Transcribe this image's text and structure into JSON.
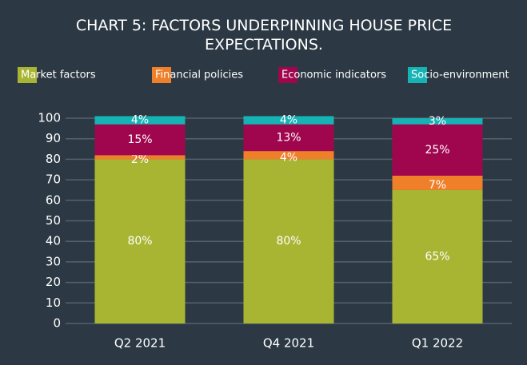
{
  "chart_data": {
    "type": "stacked_bar",
    "title": "CHART 5: FACTORS UNDERPINNING HOUSE PRICE EXPECTATIONS.",
    "categories": [
      "Q2 2021",
      "Q4 2021",
      "Q1 2022"
    ],
    "series": [
      {
        "name": "Market factors",
        "color": "#a8b533",
        "values": [
          80,
          80,
          65
        ],
        "value_labels": [
          "80%",
          "80%",
          "65%"
        ]
      },
      {
        "name": "Financial policies",
        "color": "#f07f2a",
        "values": [
          2,
          4,
          7
        ],
        "value_labels": [
          "2%",
          "4%",
          "7%"
        ]
      },
      {
        "name": "Economic indicators",
        "color": "#a0064e",
        "values": [
          15,
          13,
          25
        ],
        "value_labels": [
          "15%",
          "13%",
          "25%"
        ]
      },
      {
        "name": "Socio-environment",
        "color": "#16b3b5",
        "values": [
          4,
          4,
          3
        ],
        "value_labels": [
          "4%",
          "4%",
          "3%"
        ]
      }
    ],
    "ylim": [
      0,
      100
    ],
    "yticks": [
      0,
      10,
      20,
      30,
      40,
      50,
      60,
      70,
      80,
      90,
      100
    ],
    "grid": true
  }
}
